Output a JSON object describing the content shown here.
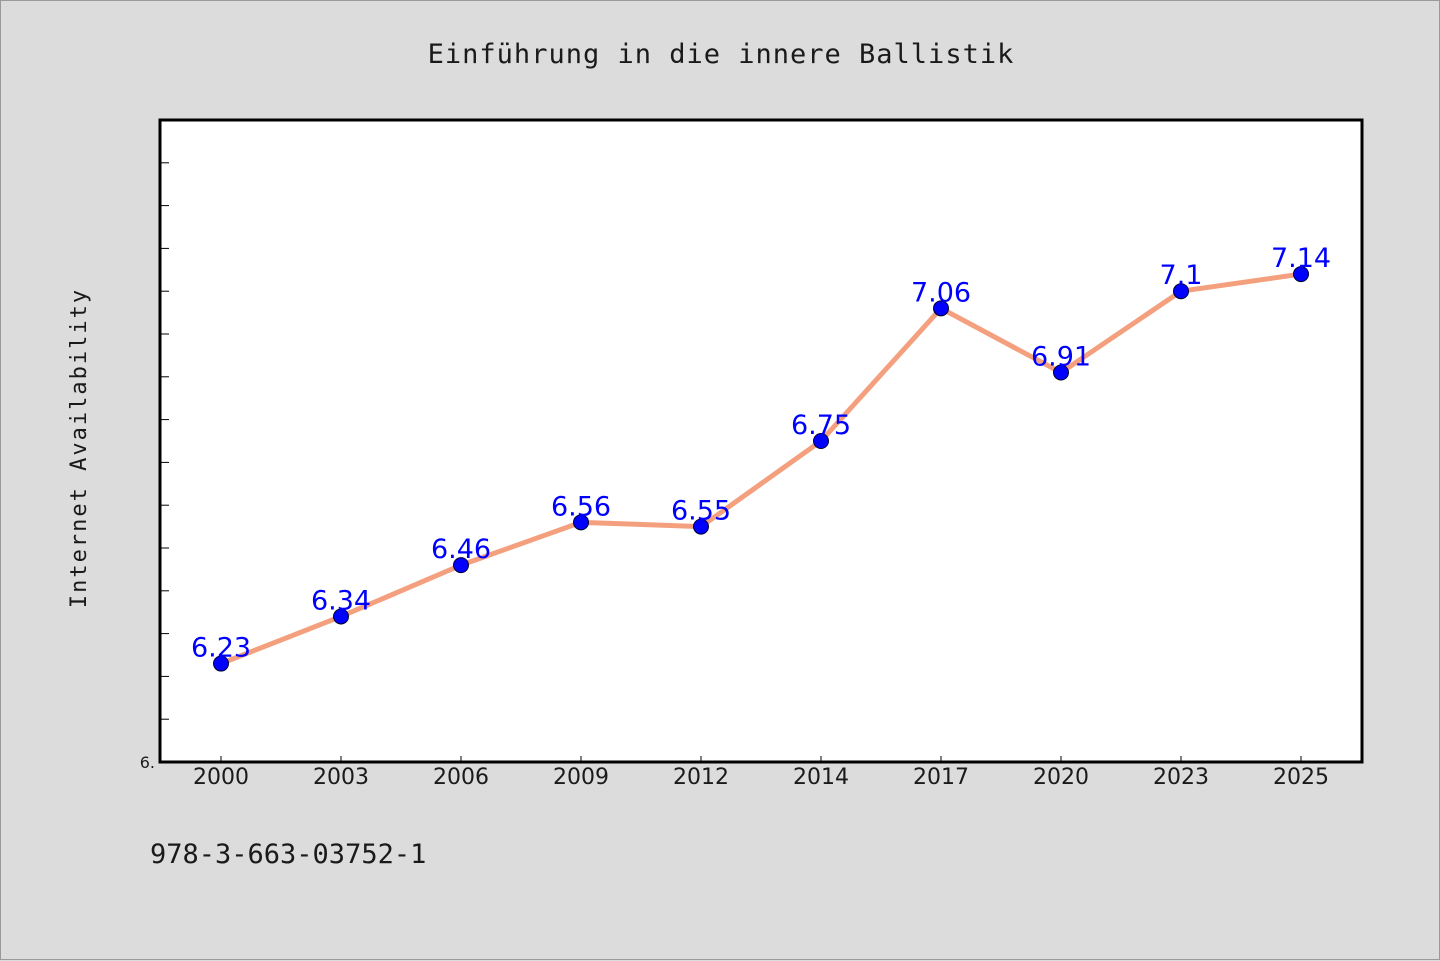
{
  "chart_data": {
    "type": "line",
    "title": "Einführung in die innere Ballistik",
    "ylabel": "Internet Availability",
    "xlabel": "",
    "categories": [
      "2000",
      "2003",
      "2006",
      "2009",
      "2012",
      "2014",
      "2017",
      "2020",
      "2023",
      "2025"
    ],
    "series": [
      {
        "values": [
          6.23,
          6.34,
          6.46,
          6.56,
          6.55,
          6.75,
          7.06,
          6.91,
          7.1,
          7.14
        ],
        "labels": [
          "6.23",
          "6.34",
          "6.46",
          "6.56",
          "6.55",
          "6.75",
          "7.06",
          "6.91",
          "7.1",
          "7.14"
        ]
      }
    ],
    "ylim": [
      6.0,
      7.5
    ],
    "y_tick_label": "6.",
    "grid": false,
    "legend": "none",
    "colors": {
      "line": "#f4a07e",
      "marker": "#0000ff",
      "data_label": "#0000ff",
      "background": "#dcdcdc",
      "plot_background": "#ffffff"
    }
  },
  "footer": {
    "isbn": "978-3-663-03752-1"
  }
}
